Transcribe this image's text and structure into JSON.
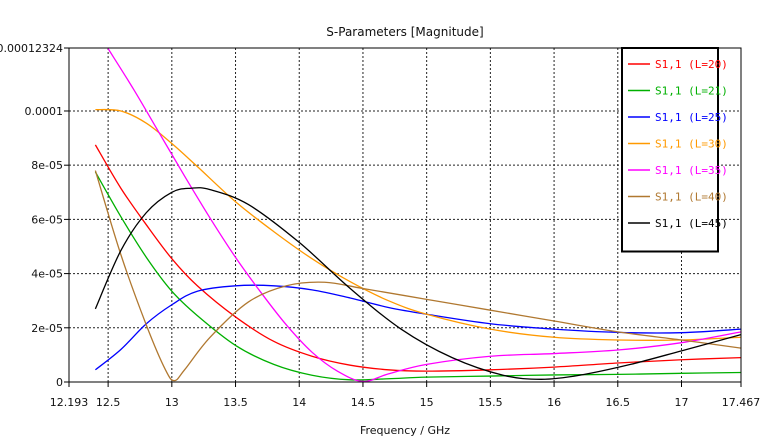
{
  "chart_data": {
    "type": "line",
    "title": "S-Parameters [Magnitude]",
    "xlabel": "Frequency / GHz",
    "ylabel": "",
    "xlim": [
      12.193,
      17.467
    ],
    "ylim": [
      0,
      0.00012324
    ],
    "xticks": [
      "12.193",
      "12.5",
      "13",
      "13.5",
      "14",
      "14.5",
      "15",
      "15.5",
      "16",
      "16.5",
      "17",
      "17.467"
    ],
    "xtick_values": [
      12.193,
      12.5,
      13,
      13.5,
      14,
      14.5,
      15,
      15.5,
      16,
      16.5,
      17,
      17.467
    ],
    "yticks": [
      "0",
      "2e-05",
      "4e-05",
      "6e-05",
      "8e-05",
      "0.0001",
      "0.00012324"
    ],
    "ytick_values": [
      0,
      2e-05,
      4e-05,
      6e-05,
      8e-05,
      0.0001,
      0.00012324
    ],
    "grid": true,
    "legend_position": "top-right",
    "series": [
      {
        "name": "S1,1 (L=20)",
        "color": "#ff0000",
        "x": [
          12.4,
          12.6,
          12.8,
          13.0,
          13.2,
          13.5,
          13.8,
          14.1,
          14.4,
          14.7,
          15.0,
          15.5,
          16.0,
          16.5,
          17.0,
          17.467
        ],
        "y": [
          8.75e-05,
          7.15e-05,
          5.8e-05,
          4.55e-05,
          3.55e-05,
          2.4e-05,
          1.5e-05,
          9.5e-06,
          6.2e-06,
          4.5e-06,
          4e-06,
          4.5e-06,
          5.5e-06,
          7e-06,
          8.2e-06,
          9e-06
        ]
      },
      {
        "name": "S1,1 (L=21)",
        "color": "#00b000",
        "x": [
          12.4,
          12.6,
          12.8,
          13.0,
          13.2,
          13.5,
          13.8,
          14.1,
          14.4,
          14.7,
          15.0,
          15.5,
          16.0,
          16.5,
          17.0,
          17.467
        ],
        "y": [
          7.75e-05,
          6.1e-05,
          4.6e-05,
          3.35e-05,
          2.45e-05,
          1.35e-05,
          6.5e-06,
          2.5e-06,
          8e-07,
          1.2e-06,
          1.8e-06,
          2.2e-06,
          2.6e-06,
          2.8e-06,
          3.2e-06,
          3.5e-06
        ]
      },
      {
        "name": "S1,1 (L=25)",
        "color": "#0000ff",
        "x": [
          12.4,
          12.6,
          12.8,
          13.0,
          13.2,
          13.5,
          13.8,
          14.1,
          14.4,
          14.7,
          15.0,
          15.5,
          16.0,
          16.5,
          17.0,
          17.467
        ],
        "y": [
          4.5e-06,
          1.2e-05,
          2.15e-05,
          2.85e-05,
          3.35e-05,
          3.55e-05,
          3.55e-05,
          3.4e-05,
          3.1e-05,
          2.75e-05,
          2.5e-05,
          2.15e-05,
          1.95e-05,
          1.83e-05,
          1.82e-05,
          1.95e-05
        ]
      },
      {
        "name": "S1,1 (L=30)",
        "color": "#ff9900",
        "x": [
          12.4,
          12.6,
          12.8,
          13.0,
          13.2,
          13.5,
          13.8,
          14.1,
          14.4,
          14.7,
          15.0,
          15.5,
          16.0,
          16.5,
          17.0,
          17.467
        ],
        "y": [
          0.0001005,
          0.0001,
          9.55e-05,
          8.8e-05,
          7.95e-05,
          6.65e-05,
          5.55e-05,
          4.55e-05,
          3.7e-05,
          3e-05,
          2.5e-05,
          1.95e-05,
          1.65e-05,
          1.55e-05,
          1.55e-05,
          1.65e-05
        ]
      },
      {
        "name": "S1,1 (L=35)",
        "color": "#ff00ff",
        "x": [
          12.5,
          12.7,
          12.9,
          13.1,
          13.3,
          13.5,
          13.7,
          13.9,
          14.1,
          14.3,
          14.5,
          14.7,
          15.0,
          15.5,
          16.0,
          16.5,
          17.0,
          17.467
        ],
        "y": [
          0.000123,
          0.000108,
          9.2e-05,
          7.6e-05,
          6.05e-05,
          4.6e-05,
          3.3e-05,
          2.1e-05,
          1.1e-05,
          4e-06,
          2e-07,
          3e-06,
          6.5e-06,
          9.5e-06,
          1.05e-05,
          1.18e-05,
          1.45e-05,
          1.85e-05
        ]
      },
      {
        "name": "S1,1 (L=40)",
        "color": "#b07830",
        "x": [
          12.4,
          12.6,
          12.8,
          12.95,
          13.02,
          13.1,
          13.3,
          13.6,
          13.9,
          14.2,
          14.5,
          15.0,
          15.5,
          16.0,
          16.5,
          17.0,
          17.467
        ],
        "y": [
          7.8e-05,
          4.7e-05,
          2.1e-05,
          4.5e-06,
          5e-07,
          4.5e-06,
          1.65e-05,
          2.95e-05,
          3.55e-05,
          3.68e-05,
          3.45e-05,
          3.05e-05,
          2.65e-05,
          2.25e-05,
          1.85e-05,
          1.55e-05,
          1.25e-05
        ]
      },
      {
        "name": "S1,1 (L=45)",
        "color": "#000000",
        "x": [
          12.4,
          12.6,
          12.8,
          13.0,
          13.15,
          13.3,
          13.6,
          14.0,
          14.4,
          14.8,
          15.2,
          15.6,
          15.9,
          16.2,
          16.6,
          17.0,
          17.467
        ],
        "y": [
          2.7e-05,
          4.85e-05,
          6.25e-05,
          7e-05,
          7.15e-05,
          7.1e-05,
          6.55e-05,
          5.15e-05,
          3.45e-05,
          1.95e-05,
          9e-06,
          2.5e-06,
          1e-06,
          2.5e-06,
          6.5e-06,
          1.15e-05,
          1.75e-05
        ]
      }
    ]
  }
}
